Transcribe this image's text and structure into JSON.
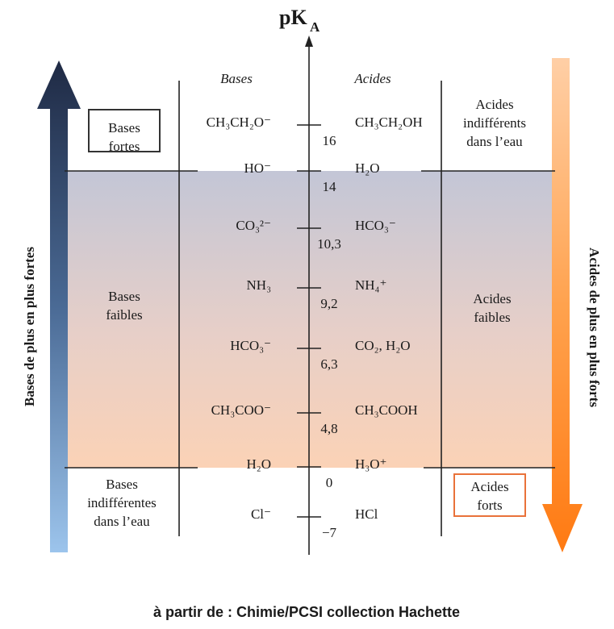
{
  "title": {
    "main": "pK",
    "sub": "A"
  },
  "column_headers": {
    "bases": "Bases",
    "acids": "Acides"
  },
  "couples": [
    {
      "base": "CH₃CH₂O⁻",
      "acid": "CH₃CH₂OH",
      "pka": "16"
    },
    {
      "base": "HO⁻",
      "acid": "H₂O",
      "pka": "14"
    },
    {
      "base": "CO₃²⁻",
      "acid": "HCO₃⁻",
      "pka": "10,3"
    },
    {
      "base": "NH₃",
      "acid": "NH₄⁺",
      "pka": "9,2"
    },
    {
      "base": "HCO₃⁻",
      "acid": "CO₂, H₂O",
      "pka": "6,3"
    },
    {
      "base": "CH₃COO⁻",
      "acid": "CH₃COOH",
      "pka": "4,8"
    },
    {
      "base": "H₂O",
      "acid": "H₃O⁺",
      "pka": "0"
    },
    {
      "base": "Cl⁻",
      "acid": "HCl",
      "pka": "−7"
    }
  ],
  "regions": {
    "strong_bases": [
      "Bases",
      "fortes"
    ],
    "indifferent_acids": [
      "Acides",
      "indifférents",
      "dans l’eau"
    ],
    "weak_bases": [
      "Bases",
      "faibles"
    ],
    "weak_acids": [
      "Acides",
      "faibles"
    ],
    "indifferent_bases": [
      "Bases",
      "indifférentes",
      "dans l’eau"
    ],
    "strong_acids": [
      "Acides",
      "forts"
    ]
  },
  "arrows": {
    "left": "Bases de plus en plus fortes",
    "right": "Acides de plus en plus forts"
  },
  "footer": "à partir de : Chimie/PCSI  collection Hachette"
}
